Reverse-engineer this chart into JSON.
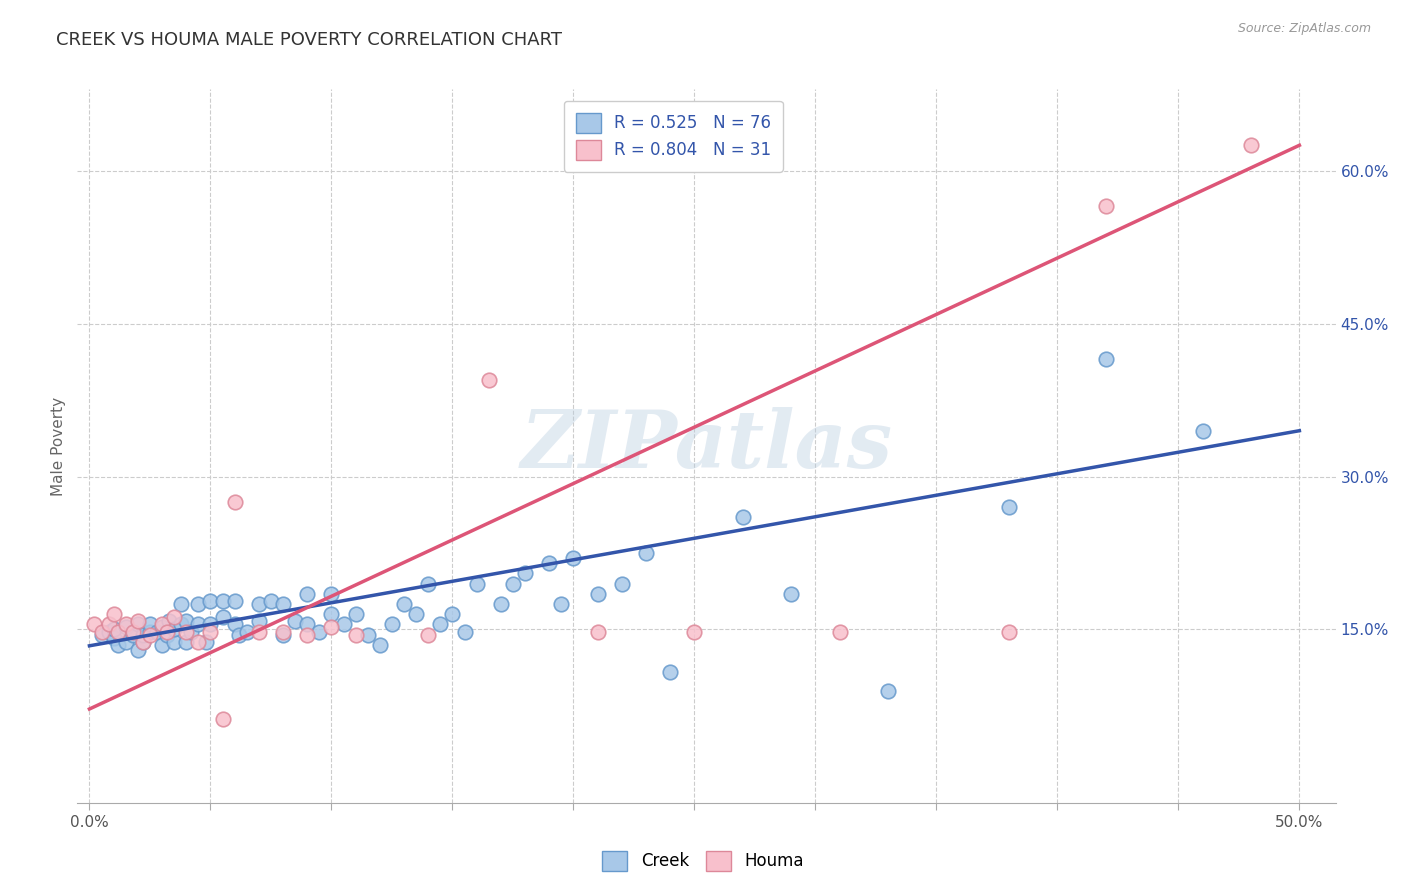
{
  "title": "CREEK VS HOUMA MALE POVERTY CORRELATION CHART",
  "source": "Source: ZipAtlas.com",
  "xlabel": "",
  "ylabel": "Male Poverty",
  "xlim": [
    -0.005,
    0.515
  ],
  "ylim": [
    -0.02,
    0.68
  ],
  "xtick_labels": [
    "0.0%",
    "",
    "",
    "",
    "",
    "",
    "",
    "",
    "",
    "",
    "50.0%"
  ],
  "xtick_vals": [
    0.0,
    0.05,
    0.1,
    0.15,
    0.2,
    0.25,
    0.3,
    0.35,
    0.4,
    0.45,
    0.5
  ],
  "ytick_labels": [
    "15.0%",
    "30.0%",
    "45.0%",
    "60.0%"
  ],
  "ytick_vals": [
    0.15,
    0.3,
    0.45,
    0.6
  ],
  "creek_color": "#a8c8e8",
  "creek_edge_color": "#6699cc",
  "houma_color": "#f8c0cc",
  "houma_edge_color": "#dd8899",
  "creek_line_color": "#3355aa",
  "houma_line_color": "#dd5577",
  "creek_R": 0.525,
  "creek_N": 76,
  "houma_R": 0.804,
  "houma_N": 31,
  "creek_scatter_x": [
    0.005,
    0.008,
    0.01,
    0.01,
    0.012,
    0.015,
    0.015,
    0.018,
    0.02,
    0.02,
    0.022,
    0.022,
    0.025,
    0.025,
    0.028,
    0.03,
    0.03,
    0.032,
    0.033,
    0.035,
    0.035,
    0.038,
    0.038,
    0.04,
    0.04,
    0.042,
    0.045,
    0.045,
    0.048,
    0.05,
    0.05,
    0.055,
    0.055,
    0.06,
    0.06,
    0.062,
    0.065,
    0.07,
    0.07,
    0.075,
    0.08,
    0.08,
    0.085,
    0.09,
    0.09,
    0.095,
    0.1,
    0.1,
    0.105,
    0.11,
    0.115,
    0.12,
    0.125,
    0.13,
    0.135,
    0.14,
    0.145,
    0.15,
    0.155,
    0.16,
    0.17,
    0.175,
    0.18,
    0.19,
    0.195,
    0.2,
    0.21,
    0.22,
    0.23,
    0.24,
    0.27,
    0.29,
    0.33,
    0.38,
    0.42,
    0.46
  ],
  "creek_scatter_y": [
    0.145,
    0.148,
    0.142,
    0.15,
    0.135,
    0.138,
    0.152,
    0.145,
    0.13,
    0.155,
    0.138,
    0.145,
    0.148,
    0.155,
    0.148,
    0.135,
    0.152,
    0.145,
    0.158,
    0.138,
    0.15,
    0.155,
    0.175,
    0.138,
    0.158,
    0.148,
    0.155,
    0.175,
    0.138,
    0.155,
    0.178,
    0.162,
    0.178,
    0.155,
    0.178,
    0.145,
    0.148,
    0.158,
    0.175,
    0.178,
    0.145,
    0.175,
    0.158,
    0.155,
    0.185,
    0.148,
    0.165,
    0.185,
    0.155,
    0.165,
    0.145,
    0.135,
    0.155,
    0.175,
    0.165,
    0.195,
    0.155,
    0.165,
    0.148,
    0.195,
    0.175,
    0.195,
    0.205,
    0.215,
    0.175,
    0.22,
    0.185,
    0.195,
    0.225,
    0.108,
    0.26,
    0.185,
    0.09,
    0.27,
    0.415,
    0.345
  ],
  "houma_scatter_x": [
    0.002,
    0.005,
    0.008,
    0.01,
    0.012,
    0.015,
    0.018,
    0.02,
    0.022,
    0.025,
    0.03,
    0.032,
    0.035,
    0.04,
    0.045,
    0.05,
    0.055,
    0.06,
    0.07,
    0.08,
    0.09,
    0.1,
    0.11,
    0.14,
    0.165,
    0.21,
    0.25,
    0.31,
    0.38,
    0.42,
    0.48
  ],
  "houma_scatter_y": [
    0.155,
    0.148,
    0.155,
    0.165,
    0.148,
    0.155,
    0.148,
    0.158,
    0.138,
    0.145,
    0.155,
    0.148,
    0.162,
    0.148,
    0.138,
    0.148,
    0.062,
    0.275,
    0.148,
    0.148,
    0.145,
    0.152,
    0.145,
    0.145,
    0.395,
    0.148,
    0.148,
    0.148,
    0.148,
    0.565,
    0.625
  ],
  "creek_line_x": [
    0.0,
    0.5
  ],
  "creek_line_y": [
    0.134,
    0.345
  ],
  "houma_line_x": [
    0.0,
    0.5
  ],
  "houma_line_y": [
    0.072,
    0.625
  ],
  "watermark": "ZIPatlas",
  "background_color": "#ffffff",
  "grid_color": "#cccccc",
  "grid_style": "--"
}
